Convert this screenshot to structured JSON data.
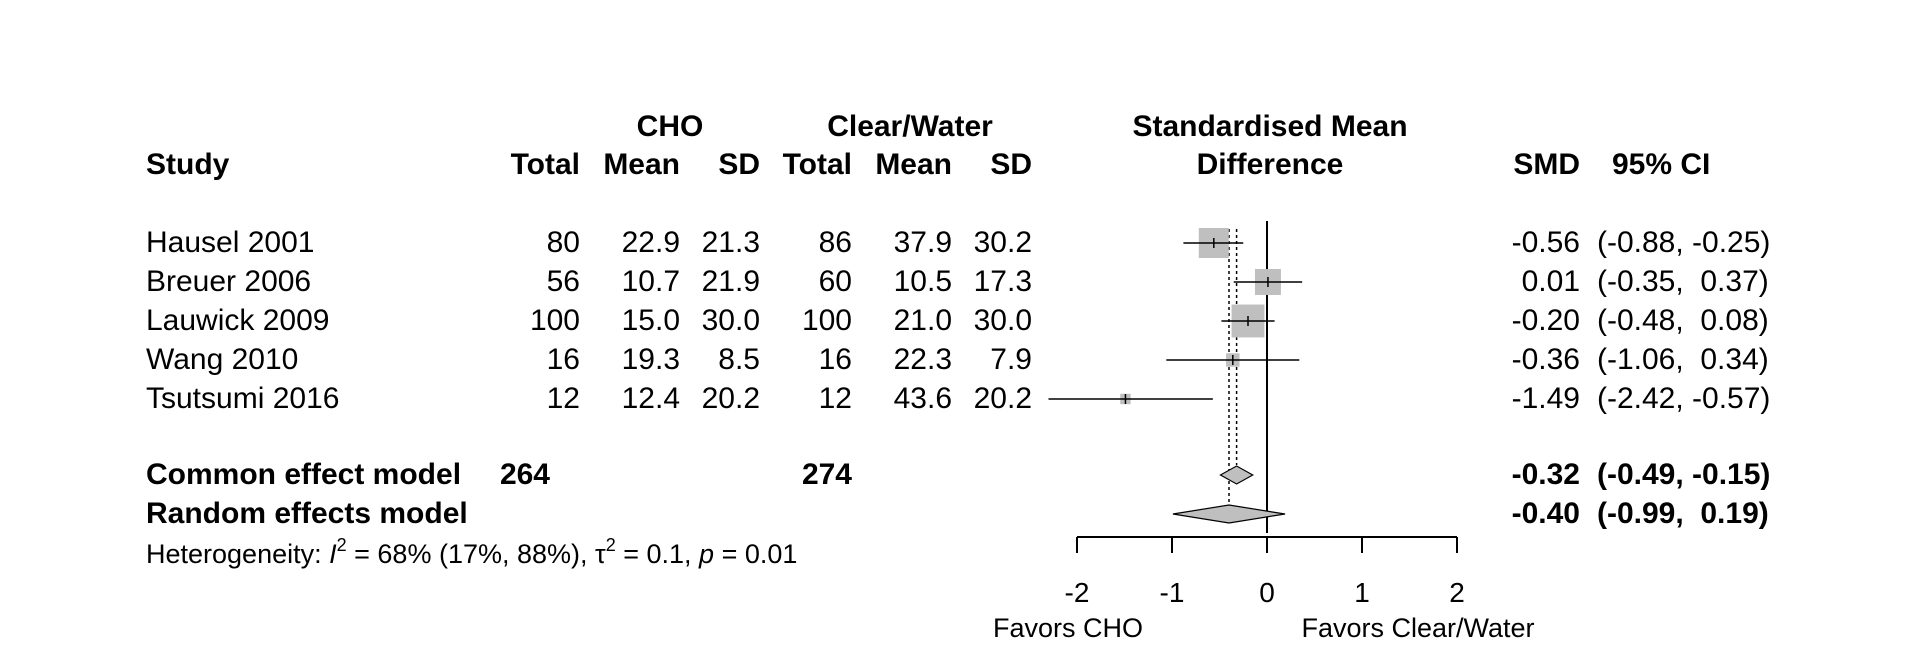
{
  "headers": {
    "study": "Study",
    "group1": "CHO",
    "group2": "Clear/Water",
    "total": "Total",
    "mean": "Mean",
    "sd": "SD",
    "effect_title_line1": "Standardised Mean",
    "effect_title_line2": "Difference",
    "smd": "SMD",
    "ci": "95% CI"
  },
  "studies": [
    {
      "study": "Hausel 2001",
      "total1": "80",
      "mean1": "22.9",
      "sd1": "21.3",
      "total2": "86",
      "mean2": "37.9",
      "sd2": "30.2",
      "smd_text": "-0.56",
      "ci_text": "(-0.88, -0.25)"
    },
    {
      "study": "Breuer 2006",
      "total1": "56",
      "mean1": "10.7",
      "sd1": "21.9",
      "total2": "60",
      "mean2": "10.5",
      "sd2": "17.3",
      "smd_text": "0.01",
      "ci_text": "(-0.35,  0.37)"
    },
    {
      "study": "Lauwick 2009",
      "total1": "100",
      "mean1": "15.0",
      "sd1": "30.0",
      "total2": "100",
      "mean2": "21.0",
      "sd2": "30.0",
      "smd_text": "-0.20",
      "ci_text": "(-0.48,  0.08)"
    },
    {
      "study": "Wang 2010",
      "total1": "16",
      "mean1": "19.3",
      "sd1": "8.5",
      "total2": "16",
      "mean2": "22.3",
      "sd2": "7.9",
      "smd_text": "-0.36",
      "ci_text": "(-1.06,  0.34)"
    },
    {
      "study": "Tsutsumi 2016",
      "total1": "12",
      "mean1": "12.4",
      "sd1": "20.2",
      "total2": "12",
      "mean2": "43.6",
      "sd2": "20.2",
      "smd_text": "-1.49",
      "ci_text": "(-2.42, -0.57)"
    }
  ],
  "summary": {
    "common": {
      "label": "Common effect model",
      "total1": "264",
      "total2": "274",
      "smd_text": "-0.32",
      "ci_text": "(-0.49, -0.15)"
    },
    "random": {
      "label": "Random effects model",
      "smd_text": "-0.40",
      "ci_text": "(-0.99,  0.19)"
    }
  },
  "heterogeneity": {
    "prefix": "Heterogeneity: ",
    "i2_symbol": "I",
    "i2_sup": "2",
    "i2_rest": " = 68% (17%, 88%), ",
    "tau_symbol": "τ",
    "tau_sup": "2",
    "tau_rest": " = 0.1, ",
    "p_symbol": "p",
    "p_rest": " = 0.01"
  },
  "axis_labels": {
    "left": "Favors CHO",
    "right": "Favors Clear/Water"
  },
  "chart_data": {
    "type": "forest",
    "xlim": [
      -2,
      2
    ],
    "ticks": [
      -2,
      -1,
      0,
      1,
      2
    ],
    "null_line": 0,
    "studies": [
      {
        "name": "Hausel 2001",
        "smd": -0.56,
        "lower": -0.88,
        "upper": -0.25,
        "weight": 1.0
      },
      {
        "name": "Breuer 2006",
        "smd": 0.01,
        "lower": -0.35,
        "upper": 0.37,
        "weight": 0.75
      },
      {
        "name": "Lauwick 2009",
        "smd": -0.2,
        "lower": -0.48,
        "upper": 0.08,
        "weight": 1.2
      },
      {
        "name": "Wang 2010",
        "smd": -0.36,
        "lower": -1.06,
        "upper": 0.34,
        "weight": 0.2
      },
      {
        "name": "Tsutsumi 2016",
        "smd": -1.49,
        "lower": -2.42,
        "upper": -0.57,
        "weight": 0.12
      }
    ],
    "common": {
      "smd": -0.32,
      "lower": -0.49,
      "upper": -0.15
    },
    "random": {
      "smd": -0.4,
      "lower": -0.99,
      "upper": 0.19
    },
    "square_color": "#bfbfbf",
    "diamond_color": "#bfbfbf",
    "line_color": "#000000"
  }
}
